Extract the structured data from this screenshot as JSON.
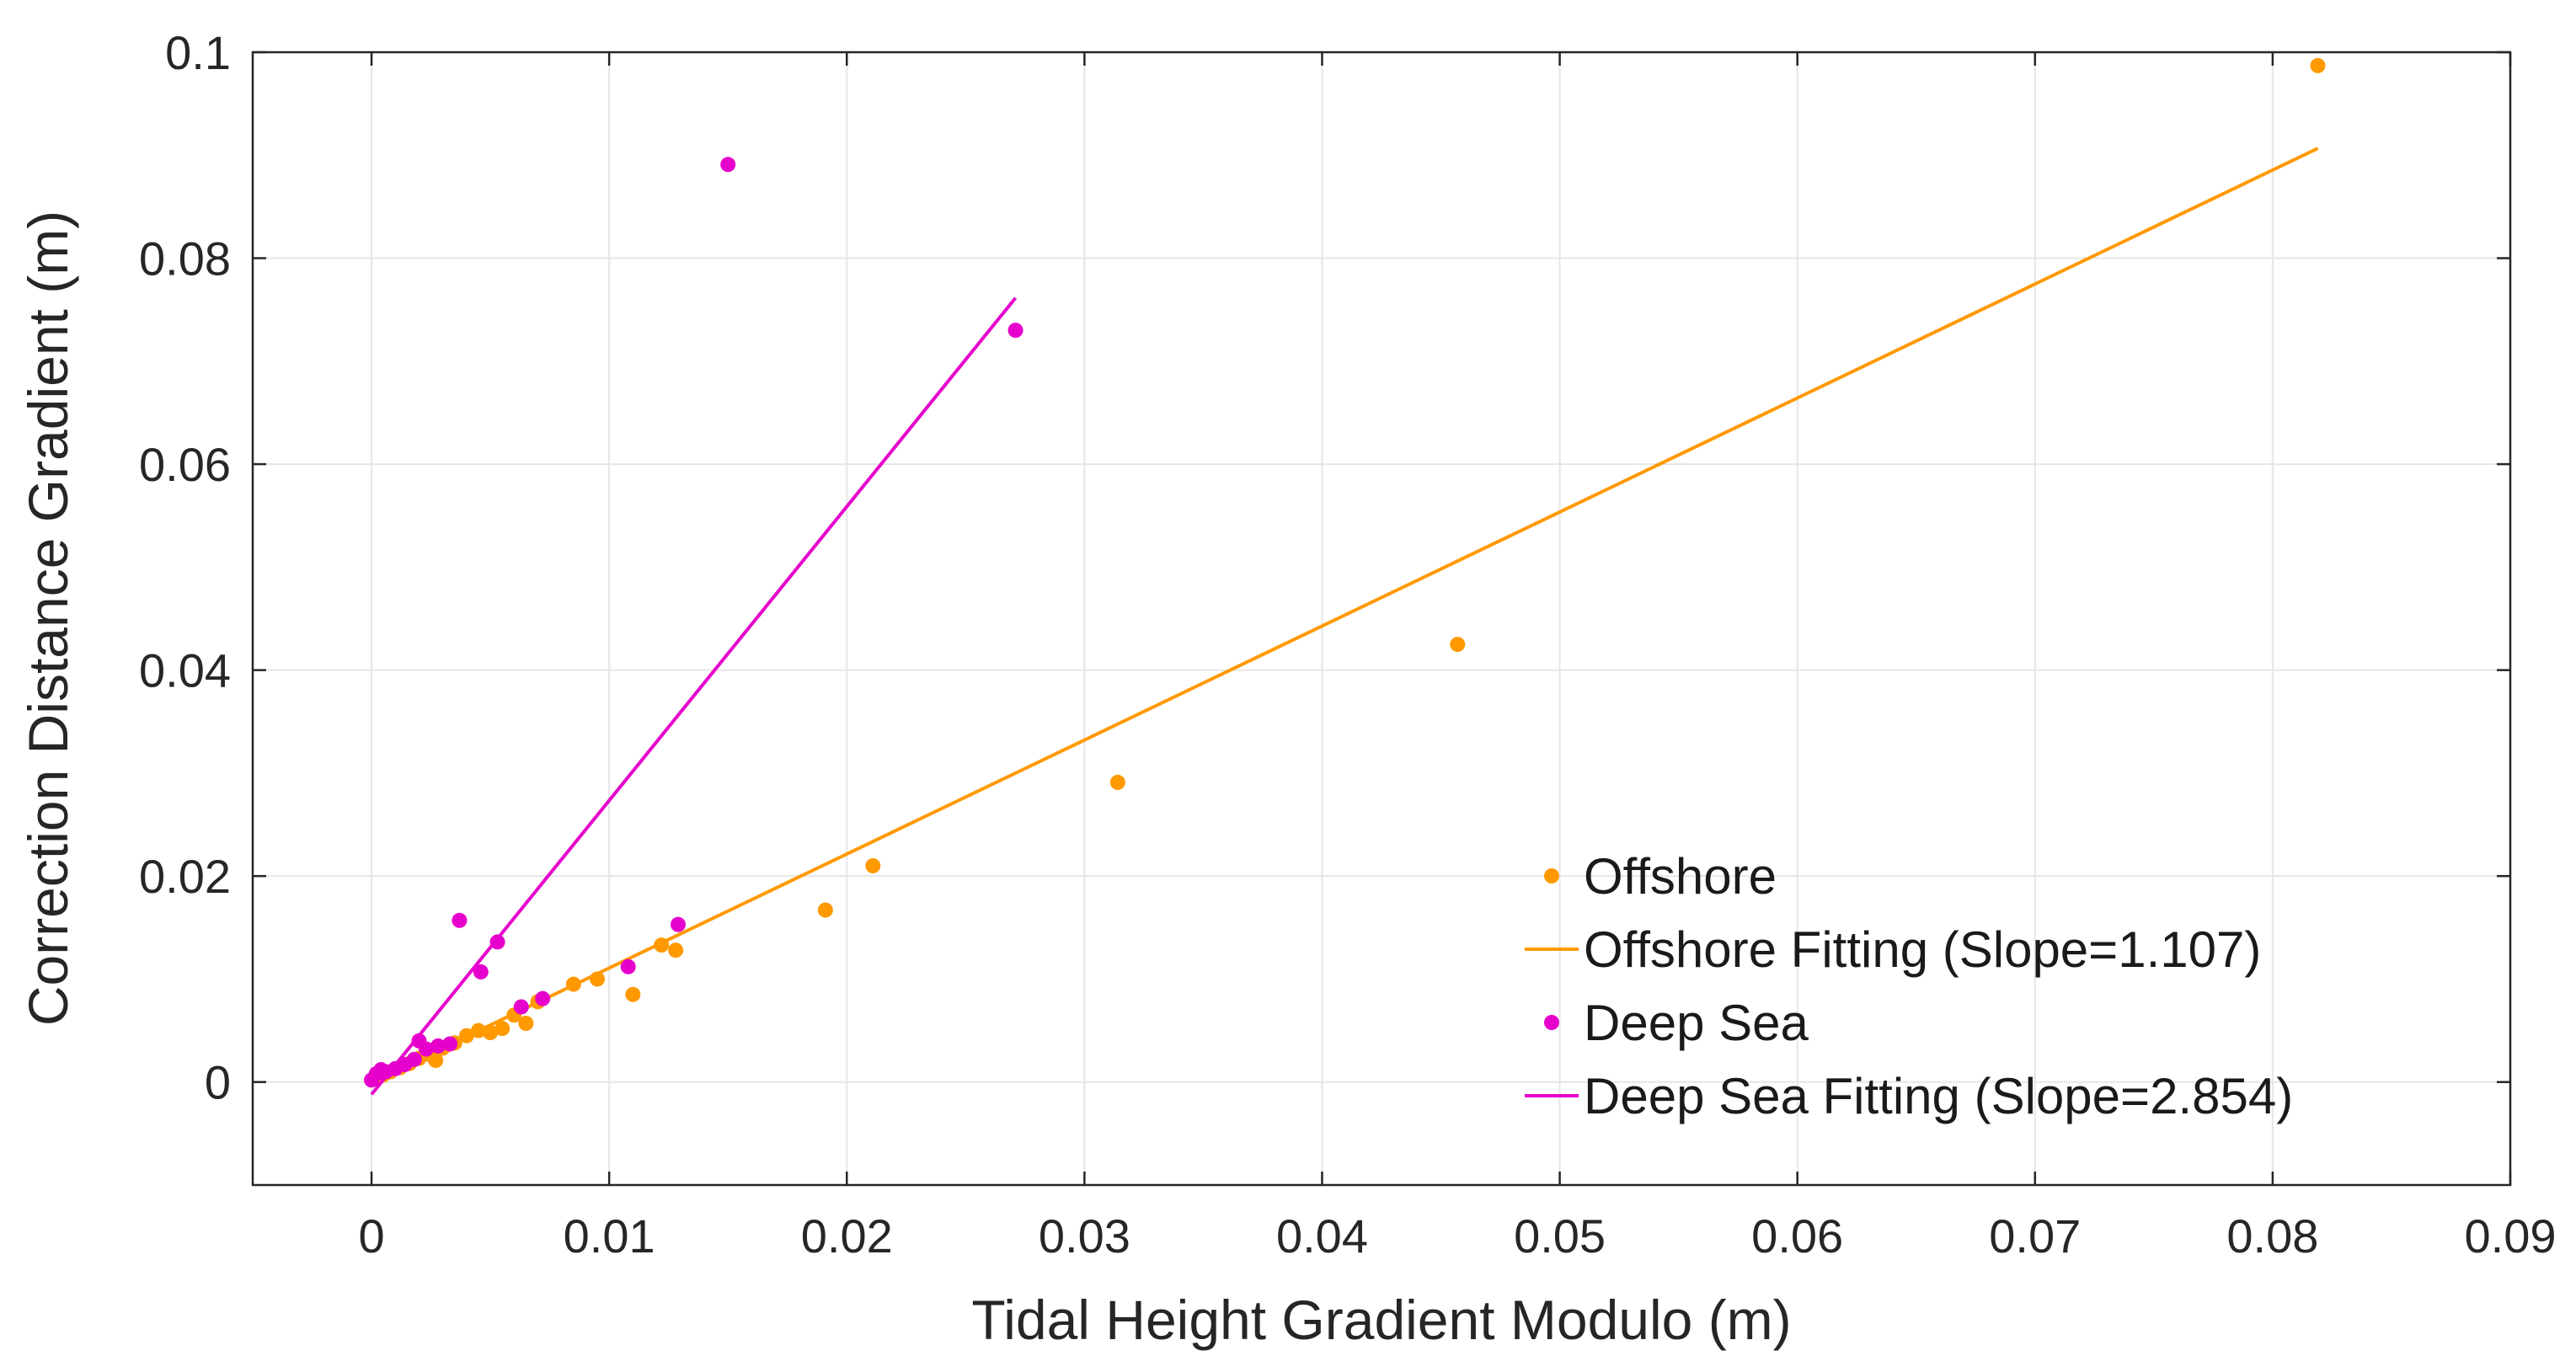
{
  "chart_data": {
    "type": "scatter",
    "title": "",
    "xlabel": "Tidal Height Gradient Modulo (m)",
    "ylabel": "Correction Distance Gradient (m)",
    "xlim": [
      -0.005,
      0.09
    ],
    "ylim": [
      -0.01,
      0.1
    ],
    "xticks": [
      0,
      0.01,
      0.02,
      0.03,
      0.04,
      0.05,
      0.06,
      0.07,
      0.08,
      0.09
    ],
    "xtick_labels": [
      "0",
      "0.01",
      "0.02",
      "0.03",
      "0.04",
      "0.05",
      "0.06",
      "0.07",
      "0.08",
      "0.09"
    ],
    "yticks": [
      0,
      0.02,
      0.04,
      0.06,
      0.08,
      0.1
    ],
    "ytick_labels": [
      "0",
      "0.02",
      "0.04",
      "0.06",
      "0.08",
      "0.1"
    ],
    "grid": true,
    "legend_position": "bottom-right",
    "series": [
      {
        "name": "Offshore",
        "kind": "scatter",
        "color": "#ff9900",
        "points": [
          [
            0.0001,
            0.0003
          ],
          [
            0.0003,
            0.0005
          ],
          [
            0.0005,
            0.0007
          ],
          [
            0.0008,
            0.001
          ],
          [
            0.0012,
            0.0014
          ],
          [
            0.0016,
            0.0018
          ],
          [
            0.002,
            0.0023
          ],
          [
            0.0024,
            0.0027
          ],
          [
            0.0027,
            0.0021
          ],
          [
            0.003,
            0.0033
          ],
          [
            0.0035,
            0.0038
          ],
          [
            0.004,
            0.0045
          ],
          [
            0.0045,
            0.005
          ],
          [
            0.005,
            0.0048
          ],
          [
            0.0055,
            0.0052
          ],
          [
            0.006,
            0.0065
          ],
          [
            0.0065,
            0.0057
          ],
          [
            0.007,
            0.0078
          ],
          [
            0.0085,
            0.0095
          ],
          [
            0.0095,
            0.01
          ],
          [
            0.011,
            0.0085
          ],
          [
            0.0122,
            0.0133
          ],
          [
            0.0128,
            0.0128
          ],
          [
            0.0191,
            0.0167
          ],
          [
            0.0211,
            0.021
          ],
          [
            0.0314,
            0.0291
          ],
          [
            0.0457,
            0.0425
          ],
          [
            0.0819,
            0.0987
          ]
        ]
      },
      {
        "name": "Offshore Fitting (Slope=1.107)",
        "kind": "line",
        "color": "#ff9900",
        "slope": 1.107,
        "x_range": [
          0,
          0.0819
        ]
      },
      {
        "name": "Deep Sea",
        "kind": "scatter",
        "color": "#e600cc",
        "points": [
          [
            0.0,
            0.0002
          ],
          [
            0.0002,
            0.0008
          ],
          [
            0.0004,
            0.0012
          ],
          [
            0.0006,
            0.001
          ],
          [
            0.001,
            0.0013
          ],
          [
            0.0014,
            0.0017
          ],
          [
            0.0018,
            0.0022
          ],
          [
            0.002,
            0.004
          ],
          [
            0.0023,
            0.0032
          ],
          [
            0.0028,
            0.0035
          ],
          [
            0.0033,
            0.0037
          ],
          [
            0.0037,
            0.0157
          ],
          [
            0.0046,
            0.0107
          ],
          [
            0.0053,
            0.0136
          ],
          [
            0.0063,
            0.0073
          ],
          [
            0.0072,
            0.0081
          ],
          [
            0.0108,
            0.0112
          ],
          [
            0.0129,
            0.0153
          ],
          [
            0.015,
            0.0891
          ],
          [
            0.0271,
            0.073
          ]
        ]
      },
      {
        "name": "Deep Sea Fitting (Slope=2.854)",
        "kind": "line",
        "color": "#e600cc",
        "slope": 2.854,
        "intercept": -0.0012,
        "x_range": [
          0,
          0.0271
        ]
      }
    ]
  }
}
